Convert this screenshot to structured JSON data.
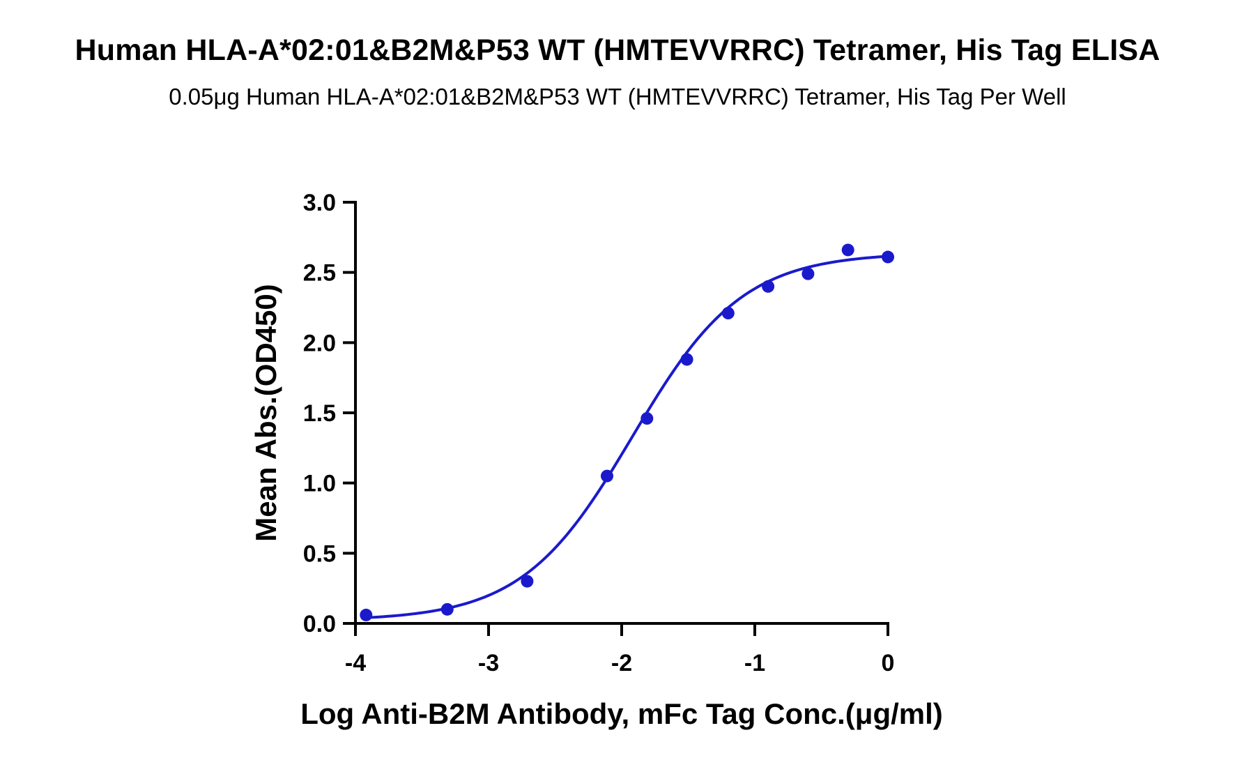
{
  "chart_data": {
    "type": "scatter",
    "title": "Human HLA-A*02:01&B2M&P53 WT (HMTEVVRRC) Tetramer, His Tag ELISA",
    "subtitle": "0.05μg Human HLA-A*02:01&B2M&P53 WT (HMTEVVRRC) Tetramer, His Tag Per Well",
    "xlabel": "Log Anti-B2M Antibody, mFc Tag Conc.(μg/ml)",
    "ylabel": "Mean Abs.(OD450)",
    "xlim": [
      -4,
      0
    ],
    "ylim": [
      0,
      3.0
    ],
    "xticks": [
      "-4",
      "-3",
      "-2",
      "-1",
      "0"
    ],
    "yticks": [
      "0.0",
      "0.5",
      "1.0",
      "1.5",
      "2.0",
      "2.5",
      "3.0"
    ],
    "grid": false,
    "series": [
      {
        "color": "#1a1acc",
        "x": [
          -3.92,
          -3.31,
          -2.71,
          -2.11,
          -1.81,
          -1.51,
          -1.2,
          -0.9,
          -0.6,
          -0.3,
          0.0
        ],
        "y": [
          0.06,
          0.1,
          0.3,
          1.05,
          1.46,
          1.88,
          2.21,
          2.4,
          2.49,
          2.66,
          2.61
        ],
        "fit": {
          "bottom": 0.02,
          "top": 2.64,
          "logEC50": -1.92,
          "hill": 1.05
        }
      }
    ]
  }
}
